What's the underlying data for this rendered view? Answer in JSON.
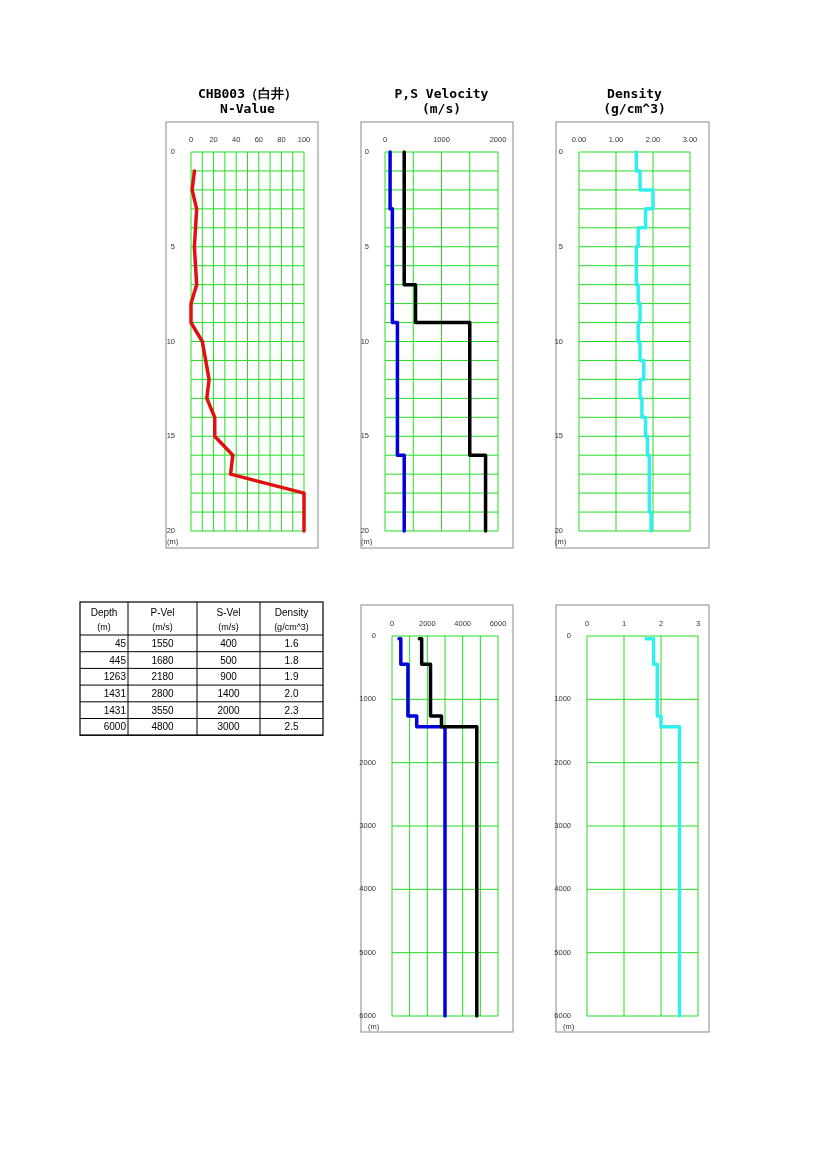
{
  "chart_data": [
    {
      "type": "line",
      "title": "CHB003（白井）",
      "subtitle": "N-Value",
      "ylabel": "(m)",
      "xlim": [
        0,
        100
      ],
      "xticks": [
        0,
        {
          "value": 10,
          "label": null
        },
        20,
        {
          "value": 30,
          "label": null
        },
        40,
        {
          "value": 50,
          "label": null
        },
        60,
        {
          "value": 70,
          "label": null
        },
        80,
        {
          "value": 90,
          "label": null
        },
        100
      ],
      "ylim": [
        20,
        0
      ],
      "yticks": [
        0,
        {
          "value": 1,
          "label": null
        },
        {
          "value": 2,
          "label": null
        },
        {
          "value": 3,
          "label": null
        },
        {
          "value": 4,
          "label": null
        },
        5,
        {
          "value": 6,
          "label": null
        },
        {
          "value": 7,
          "label": null
        },
        {
          "value": 8,
          "label": null
        },
        {
          "value": 9,
          "label": null
        },
        10,
        {
          "value": 11,
          "label": null
        },
        {
          "value": 12,
          "label": null
        },
        {
          "value": 13,
          "label": null
        },
        {
          "value": 14,
          "label": null
        },
        15,
        {
          "value": 16,
          "label": null
        },
        {
          "value": 17,
          "label": null
        },
        {
          "value": 18,
          "label": null
        },
        {
          "value": 19,
          "label": null
        },
        20
      ],
      "grid": true,
      "series": [
        {
          "color": "#e01010",
          "x": [
            3,
            1,
            5,
            3,
            5,
            0,
            0,
            10,
            16,
            14,
            21,
            21,
            37,
            35,
            100,
            100
          ],
          "values": [
            1,
            2,
            3,
            5,
            7,
            8,
            9,
            10,
            12,
            13,
            14,
            15,
            16,
            17,
            18,
            20
          ]
        }
      ]
    },
    {
      "type": "line",
      "title": "P,S Velocity",
      "subtitle": "(m/s)",
      "ylabel": "(m)",
      "xlim": [
        0,
        2000
      ],
      "xticks": [
        0,
        {
          "value": 500,
          "label": null
        },
        1000,
        {
          "value": 1500,
          "label": null
        },
        2000
      ],
      "ylim": [
        20,
        0
      ],
      "yticks": [
        0,
        {
          "value": 1,
          "label": null
        },
        {
          "value": 2,
          "label": null
        },
        {
          "value": 3,
          "label": null
        },
        {
          "value": 4,
          "label": null
        },
        5,
        {
          "value": 6,
          "label": null
        },
        {
          "value": 7,
          "label": null
        },
        {
          "value": 8,
          "label": null
        },
        {
          "value": 9,
          "label": null
        },
        10,
        {
          "value": 11,
          "label": null
        },
        {
          "value": 12,
          "label": null
        },
        {
          "value": 13,
          "label": null
        },
        {
          "value": 14,
          "label": null
        },
        15,
        {
          "value": 16,
          "label": null
        },
        {
          "value": 17,
          "label": null
        },
        {
          "value": 18,
          "label": null
        },
        {
          "value": 19,
          "label": null
        },
        20
      ],
      "grid": true,
      "series": [
        {
          "color": "#0000dd",
          "x": [
            90,
            90,
            130,
            130,
            220,
            220,
            340,
            340
          ],
          "values": [
            0,
            3,
            3,
            9,
            9,
            16,
            16,
            20
          ]
        },
        {
          "color": "#000000",
          "x": [
            340,
            340,
            540,
            540,
            1500,
            1500,
            1780,
            1780
          ],
          "values": [
            0,
            7,
            7,
            9,
            9,
            16,
            16,
            20
          ]
        }
      ]
    },
    {
      "type": "line",
      "title": "Density",
      "subtitle": "(g/cm^3)",
      "ylabel": "(m)",
      "xlim": [
        0,
        3
      ],
      "xticks": [
        {
          "value": 0,
          "label": "0.00"
        },
        {
          "value": 1,
          "label": "1.00"
        },
        {
          "value": 2,
          "label": "2.00"
        },
        {
          "value": 3,
          "label": "3.00"
        }
      ],
      "ylim": [
        20,
        0
      ],
      "yticks": [
        0,
        {
          "value": 1,
          "label": null
        },
        {
          "value": 2,
          "label": null
        },
        {
          "value": 3,
          "label": null
        },
        {
          "value": 4,
          "label": null
        },
        5,
        {
          "value": 6,
          "label": null
        },
        {
          "value": 7,
          "label": null
        },
        {
          "value": 8,
          "label": null
        },
        {
          "value": 9,
          "label": null
        },
        10,
        {
          "value": 11,
          "label": null
        },
        {
          "value": 12,
          "label": null
        },
        {
          "value": 13,
          "label": null
        },
        {
          "value": 14,
          "label": null
        },
        15,
        {
          "value": 16,
          "label": null
        },
        {
          "value": 17,
          "label": null
        },
        {
          "value": 18,
          "label": null
        },
        {
          "value": 19,
          "label": null
        },
        20
      ],
      "grid": true,
      "series": [
        {
          "color": "#33eeee",
          "x": [
            1.55,
            1.55,
            1.65,
            1.65,
            2.0,
            2.0,
            1.8,
            1.8,
            1.6,
            1.6,
            1.55,
            1.55,
            1.55,
            1.55,
            1.6,
            1.6,
            1.65,
            1.65,
            1.6,
            1.6,
            1.65,
            1.65,
            1.75,
            1.75,
            1.65,
            1.65,
            1.7,
            1.7,
            1.8,
            1.8,
            1.85,
            1.85,
            1.9,
            1.9,
            1.9,
            1.9,
            1.9,
            1.9,
            1.95,
            1.95
          ],
          "values": [
            0,
            1,
            1,
            2,
            2,
            3,
            3,
            4,
            4,
            5,
            5,
            6,
            6,
            7,
            7,
            8,
            8,
            9,
            9,
            10,
            10,
            11,
            11,
            12,
            12,
            13,
            13,
            14,
            14,
            15,
            15,
            16,
            16,
            17,
            17,
            18,
            18,
            19,
            19,
            20
          ]
        }
      ]
    },
    {
      "type": "other",
      "categories": [
        "Depth (m)",
        "P-Vel (m/s)",
        "S-Vel (m/s)",
        "Density (g/cm^3)"
      ],
      "cell_labels": [
        [
          "45",
          "1550",
          "400",
          "1.6"
        ],
        [
          "445",
          "1680",
          "500",
          "1.8"
        ],
        [
          "1263",
          "2180",
          "900",
          "1.9"
        ],
        [
          "1431",
          "2800",
          "1400",
          "2.0"
        ],
        [
          "1431",
          "3550",
          "2000",
          "2.3"
        ],
        [
          "6000",
          "4800",
          "3000",
          "2.5"
        ]
      ]
    },
    {
      "type": "line",
      "ylabel": "(m)",
      "xlim": [
        0,
        6000
      ],
      "xticks": [
        0,
        {
          "value": 1000,
          "label": null
        },
        2000,
        {
          "value": 3000,
          "label": null
        },
        4000,
        {
          "value": 5000,
          "label": null
        },
        6000
      ],
      "ylim": [
        6000,
        0
      ],
      "yticks": [
        0,
        1000,
        2000,
        3000,
        4000,
        5000,
        6000
      ],
      "grid": true,
      "series": [
        {
          "color": "#0000dd",
          "x": [
            400,
            500,
            500,
            900,
            900,
            1400,
            1400,
            2000,
            3000,
            3000
          ],
          "values": [
            45,
            45,
            445,
            445,
            1263,
            1263,
            1431,
            1431,
            1431,
            6000
          ]
        },
        {
          "color": "#000000",
          "x": [
            1550,
            1680,
            1680,
            2180,
            2180,
            2800,
            2800,
            3550,
            4800,
            4800
          ],
          "values": [
            45,
            45,
            445,
            445,
            1263,
            1263,
            1431,
            1431,
            1431,
            6000
          ]
        }
      ]
    },
    {
      "type": "line",
      "ylabel": "(m)",
      "xlim": [
        0,
        3
      ],
      "xticks": [
        0,
        1,
        2,
        3
      ],
      "ylim": [
        6000,
        0
      ],
      "yticks": [
        0,
        1000,
        2000,
        3000,
        4000,
        5000,
        6000
      ],
      "grid": true,
      "series": [
        {
          "color": "#33eeee",
          "x": [
            1.6,
            1.8,
            1.8,
            1.9,
            1.9,
            2.0,
            2.0,
            2.3,
            2.5,
            2.5
          ],
          "values": [
            45,
            45,
            445,
            445,
            1263,
            1263,
            1431,
            1431,
            1431,
            6000
          ]
        }
      ]
    }
  ]
}
